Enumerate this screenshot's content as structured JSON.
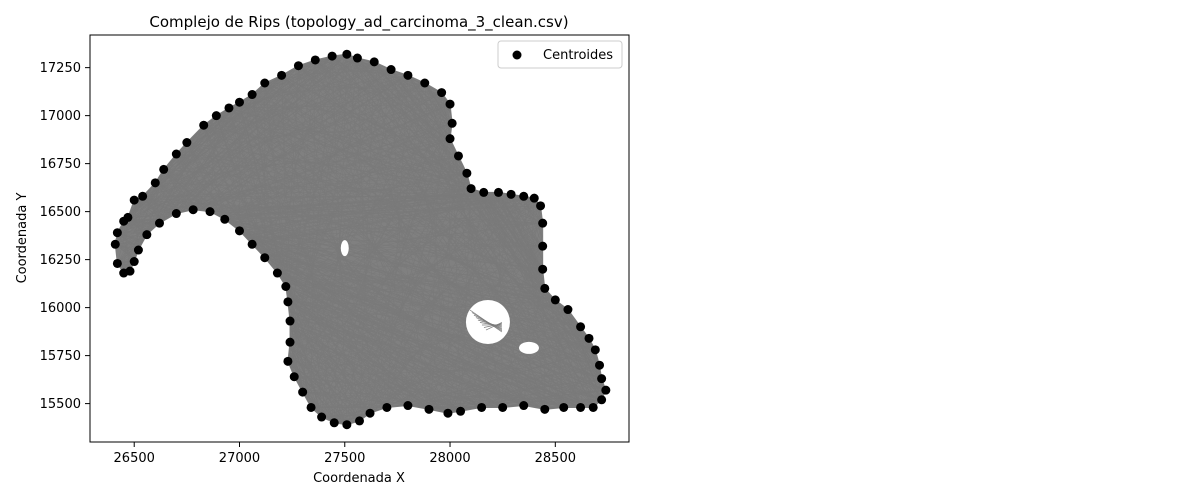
{
  "chart_data": {
    "type": "scatter",
    "title": "Complejo de Rips (topology_ad_carcinoma_3_clean.csv)",
    "xlabel": "Coordenada X",
    "ylabel": "Coordenada Y",
    "xlim": [
      26290,
      28850
    ],
    "ylim": [
      15300,
      17420
    ],
    "xticks": [
      26500,
      27000,
      27500,
      28000,
      28500
    ],
    "yticks": [
      15500,
      15750,
      16000,
      16250,
      16500,
      16750,
      17000,
      17250
    ],
    "grid": false,
    "legend": {
      "position": "top-right",
      "entries": [
        "Centroides"
      ]
    },
    "colors": {
      "points": "#000000",
      "edges": "#808080",
      "frame": "#000000"
    },
    "series": [
      {
        "name": "Centroides",
        "boundary_points": [
          [
            26410,
            16330
          ],
          [
            26420,
            16390
          ],
          [
            26450,
            16450
          ],
          [
            26470,
            16470
          ],
          [
            26500,
            16560
          ],
          [
            26540,
            16580
          ],
          [
            26600,
            16650
          ],
          [
            26640,
            16720
          ],
          [
            26700,
            16800
          ],
          [
            26750,
            16860
          ],
          [
            26830,
            16950
          ],
          [
            26890,
            17000
          ],
          [
            26950,
            17040
          ],
          [
            27000,
            17070
          ],
          [
            27060,
            17110
          ],
          [
            27120,
            17170
          ],
          [
            27200,
            17210
          ],
          [
            27280,
            17260
          ],
          [
            27360,
            17290
          ],
          [
            27440,
            17310
          ],
          [
            27510,
            17320
          ],
          [
            27560,
            17300
          ],
          [
            27640,
            17280
          ],
          [
            27720,
            17240
          ],
          [
            27800,
            17210
          ],
          [
            27880,
            17170
          ],
          [
            27960,
            17120
          ],
          [
            28000,
            17060
          ],
          [
            28010,
            16960
          ],
          [
            28000,
            16880
          ],
          [
            28040,
            16790
          ],
          [
            28080,
            16700
          ],
          [
            28100,
            16620
          ],
          [
            28160,
            16600
          ],
          [
            28230,
            16600
          ],
          [
            28290,
            16590
          ],
          [
            28350,
            16580
          ],
          [
            28400,
            16570
          ],
          [
            28430,
            16530
          ],
          [
            28440,
            16440
          ],
          [
            28440,
            16320
          ],
          [
            28440,
            16200
          ],
          [
            28450,
            16100
          ],
          [
            28500,
            16040
          ],
          [
            28560,
            15990
          ],
          [
            28620,
            15900
          ],
          [
            28660,
            15840
          ],
          [
            28690,
            15780
          ],
          [
            28710,
            15700
          ],
          [
            28720,
            15630
          ],
          [
            28740,
            15570
          ],
          [
            28720,
            15520
          ],
          [
            28680,
            15480
          ],
          [
            28620,
            15480
          ],
          [
            28540,
            15480
          ],
          [
            28450,
            15470
          ],
          [
            28350,
            15490
          ],
          [
            28250,
            15480
          ],
          [
            28150,
            15480
          ],
          [
            28050,
            15460
          ],
          [
            27990,
            15450
          ],
          [
            27900,
            15470
          ],
          [
            27800,
            15490
          ],
          [
            27700,
            15480
          ],
          [
            27620,
            15450
          ],
          [
            27570,
            15410
          ],
          [
            27510,
            15390
          ],
          [
            27450,
            15400
          ],
          [
            27390,
            15430
          ],
          [
            27340,
            15480
          ],
          [
            27300,
            15560
          ],
          [
            27260,
            15640
          ],
          [
            27230,
            15720
          ],
          [
            27240,
            15820
          ],
          [
            27240,
            15930
          ],
          [
            27230,
            16030
          ],
          [
            27220,
            16110
          ],
          [
            27180,
            16180
          ],
          [
            27120,
            16260
          ],
          [
            27060,
            16330
          ],
          [
            27000,
            16400
          ],
          [
            26930,
            16460
          ],
          [
            26860,
            16500
          ],
          [
            26780,
            16510
          ],
          [
            26700,
            16490
          ],
          [
            26620,
            16440
          ],
          [
            26560,
            16380
          ],
          [
            26520,
            16300
          ],
          [
            26500,
            16240
          ],
          [
            26480,
            16190
          ],
          [
            26450,
            16180
          ],
          [
            26420,
            16230
          ]
        ]
      }
    ]
  }
}
